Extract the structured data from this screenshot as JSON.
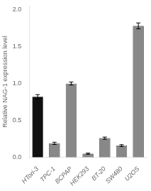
{
  "chart_data": {
    "type": "bar",
    "categories": [
      "HTori-3",
      "TPC-1",
      "BCPAP",
      "HEK293",
      "BT-20",
      "SW480",
      "U2OS"
    ],
    "values": [
      0.82,
      0.19,
      1.0,
      0.05,
      0.26,
      0.16,
      1.78
    ],
    "errors": [
      0.03,
      0.015,
      0.02,
      0.008,
      0.015,
      0.012,
      0.04
    ],
    "colors": [
      "#111111",
      "#888888",
      "#888888",
      "#888888",
      "#888888",
      "#888888",
      "#888888"
    ],
    "ylabel": "Relative NAG-1 expression level",
    "ylim": [
      0,
      2.05
    ],
    "yticks": [
      {
        "value": 0,
        "label": "0.0"
      },
      0.5,
      {
        "value": 1,
        "label": "1.0"
      },
      1.5,
      {
        "value": 2,
        "label": "2.0"
      }
    ],
    "grid": false
  }
}
